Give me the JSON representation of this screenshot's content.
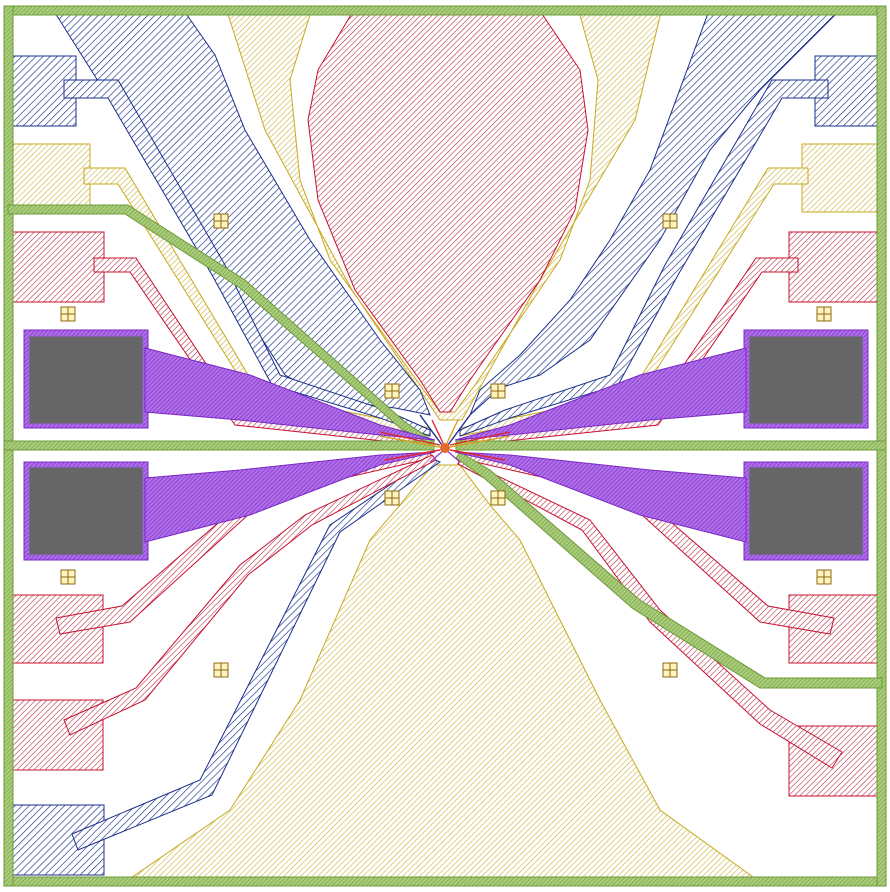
{
  "layers": [
    {
      "name": "border-frame",
      "color": "#8fb85a"
    },
    {
      "name": "metal-blue",
      "color": "#1a2f8c"
    },
    {
      "name": "metal-yellow",
      "color": "#c9b23a"
    },
    {
      "name": "metal-red",
      "color": "#b32038"
    },
    {
      "name": "gate-purple",
      "color": "#8f3fd6"
    },
    {
      "name": "bond-pad-gray",
      "color": "#666666"
    },
    {
      "name": "alignment-marker",
      "color": "#8a6a10"
    },
    {
      "name": "center-fine-lines",
      "color": "#e0252e"
    }
  ],
  "background": "#ffffff"
}
